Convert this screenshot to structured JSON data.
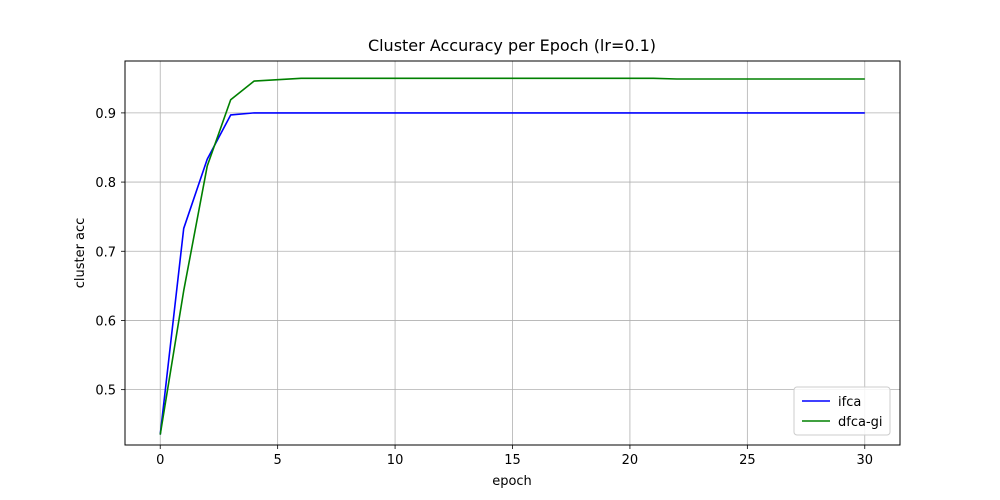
{
  "chart_data": {
    "type": "line",
    "title": "Cluster Accuracy per Epoch (lr=0.1)",
    "xlabel": "epoch",
    "ylabel": "cluster acc",
    "xlim": [
      -1.5,
      31.5
    ],
    "ylim": [
      0.42,
      0.975
    ],
    "xticks": [
      0,
      5,
      10,
      15,
      20,
      25,
      30
    ],
    "yticks": [
      0.5,
      0.6,
      0.7,
      0.8,
      0.9
    ],
    "grid": true,
    "legend_position": "lower-right",
    "x": [
      0,
      1,
      2,
      3,
      4,
      5,
      6,
      7,
      8,
      9,
      10,
      11,
      12,
      13,
      14,
      15,
      16,
      17,
      18,
      19,
      20,
      21,
      22,
      23,
      24,
      25,
      26,
      27,
      28,
      29,
      30
    ],
    "series": [
      {
        "name": "ifca",
        "color": "#0000ff",
        "values": [
          0.435,
          0.733,
          0.833,
          0.897,
          0.9,
          0.9,
          0.9,
          0.9,
          0.9,
          0.9,
          0.9,
          0.9,
          0.9,
          0.9,
          0.9,
          0.9,
          0.9,
          0.9,
          0.9,
          0.9,
          0.9,
          0.9,
          0.9,
          0.9,
          0.9,
          0.9,
          0.9,
          0.9,
          0.9,
          0.9,
          0.9
        ]
      },
      {
        "name": "dfca-gi",
        "color": "#008000",
        "values": [
          0.435,
          0.643,
          0.823,
          0.919,
          0.946,
          0.948,
          0.95,
          0.95,
          0.95,
          0.95,
          0.95,
          0.95,
          0.95,
          0.95,
          0.95,
          0.95,
          0.95,
          0.95,
          0.95,
          0.95,
          0.95,
          0.95,
          0.949,
          0.949,
          0.949,
          0.949,
          0.949,
          0.949,
          0.949,
          0.949,
          0.949
        ]
      }
    ]
  }
}
